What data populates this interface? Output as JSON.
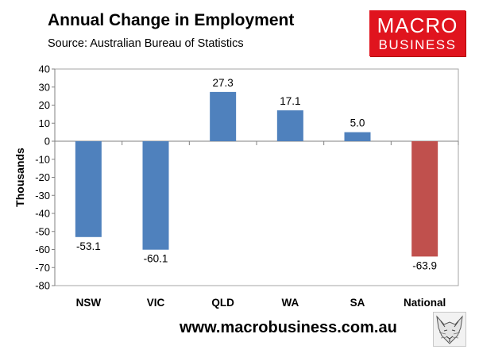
{
  "header": {
    "title": "Annual Change in Employment",
    "subtitle": "Source: Australian Bureau of Statistics"
  },
  "logo": {
    "line1": "MACRO",
    "line2": "BUSINESS"
  },
  "footer": {
    "url": "www.macrobusiness.com.au",
    "mascot_icon": "fox-sketch-icon"
  },
  "colors": {
    "bar": "#4f81bd",
    "bar_highlight": "#c0504d",
    "logo_bg": "#e0141e",
    "plot_border": "#a6a6a6"
  },
  "chart_data": {
    "type": "bar",
    "title": "Annual Change in Employment",
    "subtitle": "Source: Australian Bureau of Statistics",
    "xlabel": "",
    "ylabel": "Thousands",
    "categories": [
      "NSW",
      "VIC",
      "QLD",
      "WA",
      "SA",
      "National"
    ],
    "values": [
      -53.1,
      -60.1,
      27.3,
      17.1,
      5.0,
      -63.9
    ],
    "data_labels": [
      "-53.1",
      "-60.1",
      "27.3",
      "17.1",
      "5.0",
      "-63.9"
    ],
    "highlight": [
      false,
      false,
      false,
      false,
      false,
      true
    ],
    "ylim": [
      -80,
      40
    ],
    "yticks": [
      40,
      30,
      20,
      10,
      0,
      -10,
      -20,
      -30,
      -40,
      -50,
      -60,
      -70,
      -80
    ],
    "grid": false,
    "legend": "none"
  }
}
